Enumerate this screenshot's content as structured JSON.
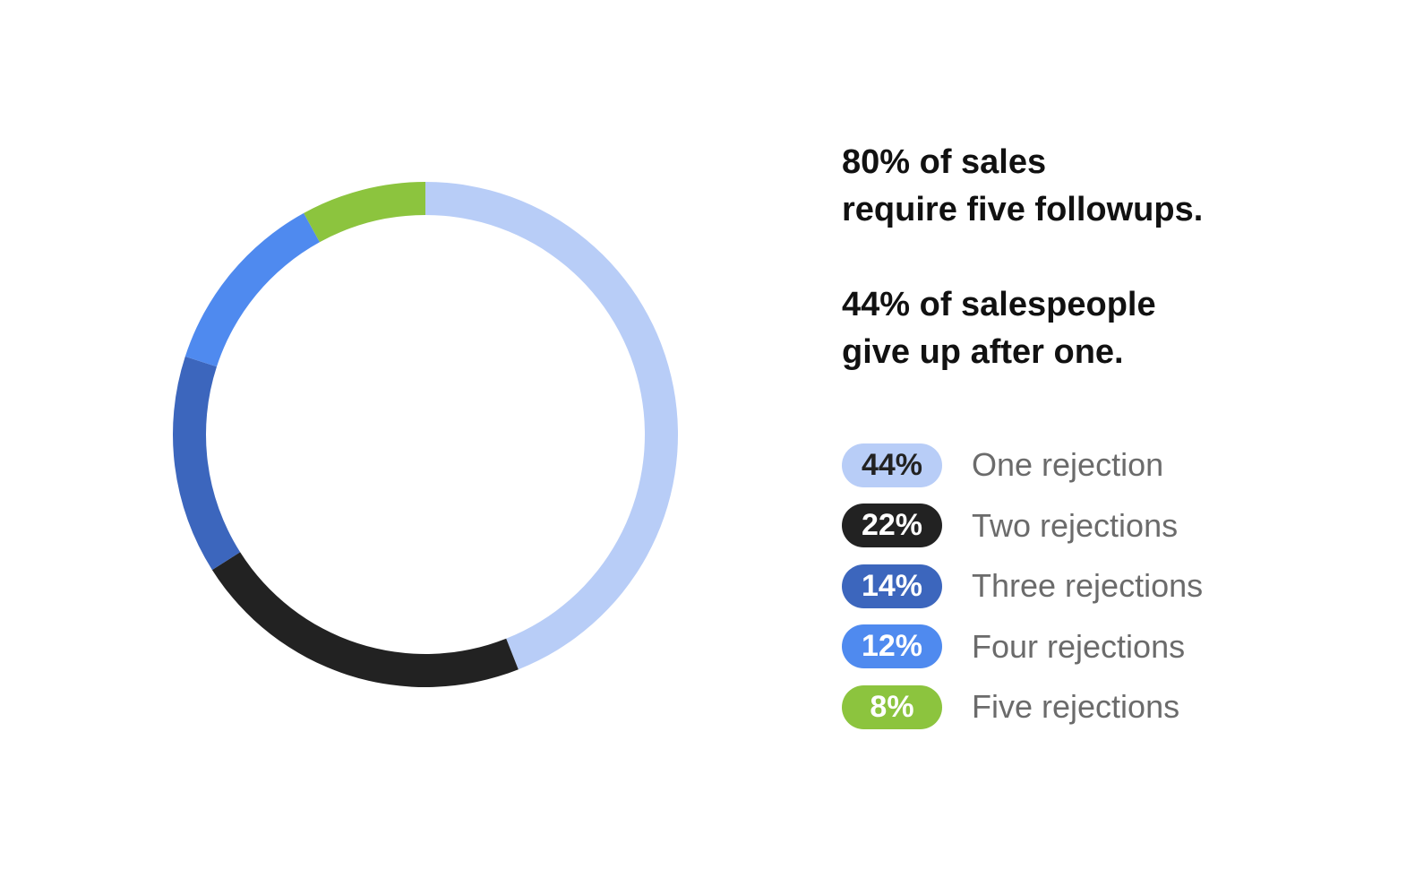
{
  "headlines": [
    {
      "line1": "80% of sales",
      "line2": "require five followups."
    },
    {
      "line1": "44% of salespeople",
      "line2": "give up after one."
    }
  ],
  "chart_data": {
    "type": "pie",
    "variant": "donut",
    "categories": [
      "One rejection",
      "Two rejections",
      "Three rejections",
      "Four rejections",
      "Five rejections"
    ],
    "values": [
      44,
      22,
      14,
      12,
      8
    ],
    "value_labels": [
      "44%",
      "22%",
      "14%",
      "12%",
      "8%"
    ],
    "colors": [
      "#b8cdf7",
      "#222222",
      "#3c66bd",
      "#4f8aef",
      "#8cc43e"
    ],
    "label_colors": [
      "#222222",
      "#ffffff",
      "#ffffff",
      "#ffffff",
      "#ffffff"
    ],
    "legend_placement": "right"
  }
}
